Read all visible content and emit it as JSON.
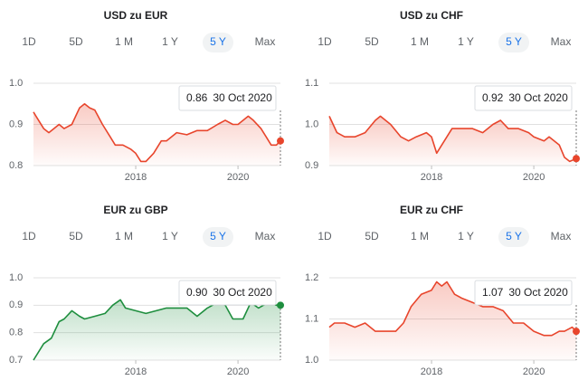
{
  "chart_data": [
    {
      "type": "line",
      "title": "USD zu EUR",
      "ranges": [
        "1D",
        "5D",
        "1 M",
        "1 Y",
        "5 Y",
        "Max"
      ],
      "active_range": "5 Y",
      "color": "#e8452c",
      "tooltip_value": 0.86,
      "tooltip_date": "30 Oct 2020",
      "x": [
        2016.0,
        2016.05,
        2016.2,
        2016.3,
        2016.4,
        2016.5,
        2016.6,
        2016.75,
        2016.9,
        2017.0,
        2017.1,
        2017.2,
        2017.35,
        2017.5,
        2017.6,
        2017.75,
        2017.9,
        2018.0,
        2018.1,
        2018.2,
        2018.35,
        2018.5,
        2018.6,
        2018.8,
        2019.0,
        2019.2,
        2019.4,
        2019.6,
        2019.75,
        2019.9,
        2020.0,
        2020.2,
        2020.3,
        2020.45,
        2020.55,
        2020.65,
        2020.75,
        2020.83
      ],
      "values": [
        0.93,
        0.92,
        0.89,
        0.88,
        0.89,
        0.9,
        0.89,
        0.9,
        0.94,
        0.95,
        0.94,
        0.935,
        0.9,
        0.87,
        0.85,
        0.85,
        0.84,
        0.83,
        0.81,
        0.81,
        0.83,
        0.86,
        0.86,
        0.88,
        0.875,
        0.885,
        0.885,
        0.9,
        0.91,
        0.9,
        0.9,
        0.92,
        0.91,
        0.89,
        0.87,
        0.85,
        0.85,
        0.86
      ],
      "xlim": [
        2016.0,
        2020.83
      ],
      "xticks": [
        2018,
        2020
      ],
      "ylim": [
        0.8,
        1.0
      ],
      "yticks": [
        {
          "value": 1.0,
          "label": "1.0"
        },
        0.9,
        0.8
      ]
    },
    {
      "type": "line",
      "title": "USD zu CHF",
      "ranges": [
        "1D",
        "5D",
        "1 M",
        "1 Y",
        "5 Y",
        "Max"
      ],
      "active_range": "5 Y",
      "color": "#e8452c",
      "tooltip_value": 0.92,
      "tooltip_date": "30 Oct 2020",
      "x": [
        2016.0,
        2016.15,
        2016.3,
        2016.5,
        2016.7,
        2016.9,
        2017.0,
        2017.2,
        2017.4,
        2017.55,
        2017.7,
        2017.9,
        2018.0,
        2018.1,
        2018.25,
        2018.4,
        2018.6,
        2018.8,
        2019.0,
        2019.2,
        2019.35,
        2019.5,
        2019.7,
        2019.9,
        2020.0,
        2020.2,
        2020.3,
        2020.5,
        2020.6,
        2020.7,
        2020.83
      ],
      "values": [
        1.02,
        0.98,
        0.97,
        0.97,
        0.98,
        1.01,
        1.02,
        1.0,
        0.97,
        0.96,
        0.97,
        0.98,
        0.97,
        0.93,
        0.96,
        0.99,
        0.99,
        0.99,
        0.98,
        1.0,
        1.01,
        0.99,
        0.99,
        0.98,
        0.97,
        0.96,
        0.97,
        0.95,
        0.92,
        0.91,
        0.917
      ],
      "xlim": [
        2016.0,
        2020.83
      ],
      "xticks": [
        2018,
        2020
      ],
      "ylim": [
        0.9,
        1.1
      ],
      "yticks": [
        1.1,
        {
          "value": 1.0,
          "label": "1.0"
        },
        0.9
      ]
    },
    {
      "type": "line",
      "title": "EUR zu GBP",
      "ranges": [
        "1D",
        "5D",
        "1 M",
        "1 Y",
        "5 Y",
        "Max"
      ],
      "active_range": "5 Y",
      "color": "#1e8e3e",
      "tooltip_value": 0.9,
      "tooltip_date": "30 Oct 2020",
      "x": [
        2016.0,
        2016.2,
        2016.35,
        2016.5,
        2016.6,
        2016.75,
        2016.9,
        2017.0,
        2017.2,
        2017.4,
        2017.55,
        2017.7,
        2017.8,
        2018.0,
        2018.2,
        2018.4,
        2018.6,
        2018.8,
        2019.0,
        2019.2,
        2019.4,
        2019.6,
        2019.75,
        2019.9,
        2020.1,
        2020.25,
        2020.4,
        2020.5,
        2020.65,
        2020.75,
        2020.83
      ],
      "values": [
        0.7,
        0.76,
        0.78,
        0.84,
        0.85,
        0.88,
        0.86,
        0.85,
        0.86,
        0.87,
        0.9,
        0.92,
        0.89,
        0.88,
        0.87,
        0.88,
        0.89,
        0.89,
        0.89,
        0.86,
        0.89,
        0.91,
        0.9,
        0.85,
        0.85,
        0.91,
        0.89,
        0.9,
        0.91,
        0.9,
        0.9
      ],
      "xlim": [
        2016.0,
        2020.83
      ],
      "xticks": [
        2018,
        2020
      ],
      "ylim": [
        0.7,
        1.0
      ],
      "yticks": [
        {
          "value": 1.0,
          "label": "1.0"
        },
        0.9,
        0.8,
        0.7
      ]
    },
    {
      "type": "line",
      "title": "EUR zu CHF",
      "ranges": [
        "1D",
        "5D",
        "1 M",
        "1 Y",
        "5 Y",
        "Max"
      ],
      "active_range": "5 Y",
      "color": "#e8452c",
      "tooltip_value": 1.07,
      "tooltip_date": "30 Oct 2020",
      "x": [
        2016.0,
        2016.1,
        2016.3,
        2016.5,
        2016.7,
        2016.9,
        2017.0,
        2017.3,
        2017.45,
        2017.6,
        2017.8,
        2018.0,
        2018.1,
        2018.2,
        2018.3,
        2018.45,
        2018.6,
        2018.8,
        2019.0,
        2019.2,
        2019.4,
        2019.6,
        2019.8,
        2020.0,
        2020.2,
        2020.35,
        2020.5,
        2020.6,
        2020.75,
        2020.83
      ],
      "values": [
        1.08,
        1.09,
        1.09,
        1.08,
        1.09,
        1.07,
        1.07,
        1.07,
        1.09,
        1.13,
        1.16,
        1.17,
        1.19,
        1.18,
        1.19,
        1.16,
        1.15,
        1.14,
        1.13,
        1.13,
        1.12,
        1.09,
        1.09,
        1.07,
        1.06,
        1.06,
        1.07,
        1.07,
        1.08,
        1.07
      ],
      "xlim": [
        2016.0,
        2020.83
      ],
      "xticks": [
        2018,
        2020
      ],
      "ylim": [
        1.0,
        1.2
      ],
      "yticks": [
        1.2,
        1.1,
        {
          "value": 1.0,
          "label": "1.0"
        }
      ]
    }
  ]
}
